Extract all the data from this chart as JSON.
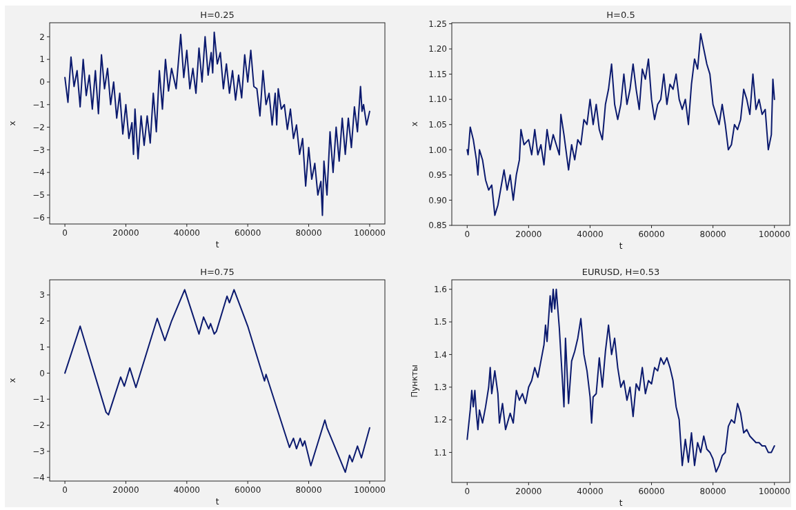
{
  "chart_data": [
    {
      "type": "line",
      "title": "H=0.25",
      "xlabel": "t",
      "ylabel": "x",
      "xlim": [
        -5000,
        105000
      ],
      "xticks": [
        0,
        20000,
        40000,
        60000,
        80000,
        100000
      ],
      "ylim": [
        -6.28,
        2.62
      ],
      "yticks": [
        {
          "value": -6,
          "label": "−6"
        },
        {
          "value": -5,
          "label": "−5"
        },
        {
          "value": -4,
          "label": "−4"
        },
        {
          "value": -3,
          "label": "−3"
        },
        {
          "value": -2,
          "label": "−2"
        },
        {
          "value": -1,
          "label": "−1"
        },
        0,
        1,
        2
      ],
      "grid": false,
      "series": [
        {
          "color": "#0b1a6e",
          "x": [
            0,
            1000,
            2000,
            3000,
            4000,
            5000,
            6000,
            7000,
            8000,
            9000,
            10000,
            11000,
            12000,
            13000,
            14000,
            15000,
            16000,
            17000,
            18000,
            19000,
            20000,
            21000,
            22000,
            22500,
            23000,
            24000,
            25000,
            26000,
            27000,
            28000,
            29000,
            30000,
            31000,
            32000,
            33000,
            34000,
            35000,
            36500,
            38000,
            39000,
            40000,
            41000,
            42000,
            43000,
            44000,
            45000,
            46000,
            47000,
            48000,
            48500,
            49000,
            50000,
            51000,
            52000,
            53000,
            54000,
            55000,
            56000,
            57000,
            58000,
            59000,
            60000,
            61000,
            62000,
            63000,
            64000,
            65000,
            66000,
            67000,
            68000,
            69000,
            69500,
            70000,
            71000,
            72000,
            73000,
            74000,
            75000,
            76000,
            77000,
            78000,
            79000,
            80000,
            81000,
            82000,
            83000,
            84000,
            84500,
            85000,
            86000,
            87000,
            88000,
            89000,
            90000,
            91000,
            92000,
            93000,
            94000,
            95000,
            96000,
            97000,
            97500,
            98000,
            99000,
            100000
          ],
          "values": [
            0.2,
            -0.9,
            1.1,
            -0.2,
            0.5,
            -1.1,
            1.0,
            -0.6,
            0.3,
            -1.2,
            0.5,
            -1.4,
            1.2,
            -0.3,
            0.6,
            -1.0,
            0.0,
            -1.6,
            -0.5,
            -2.3,
            -1.0,
            -2.5,
            -1.8,
            -3.2,
            -1.2,
            -3.4,
            -1.5,
            -2.8,
            -1.5,
            -2.7,
            -0.5,
            -2.2,
            0.5,
            -1.2,
            1.0,
            -0.4,
            0.6,
            -0.3,
            2.1,
            0.2,
            1.4,
            -0.3,
            0.6,
            -0.5,
            1.5,
            0.0,
            2.0,
            0.3,
            1.3,
            0.4,
            2.2,
            0.8,
            1.3,
            -0.3,
            0.8,
            -0.5,
            0.5,
            -0.8,
            0.3,
            -0.7,
            1.2,
            0.0,
            1.4,
            -0.2,
            -0.3,
            -1.5,
            0.5,
            -1.0,
            -0.5,
            -1.9,
            -0.5,
            -1.9,
            -0.3,
            -1.2,
            -1.0,
            -2.1,
            -1.2,
            -2.5,
            -1.9,
            -3.2,
            -2.5,
            -4.6,
            -2.9,
            -4.3,
            -3.6,
            -5.0,
            -4.4,
            -5.9,
            -3.5,
            -5.0,
            -2.2,
            -4.0,
            -2.0,
            -3.5,
            -1.6,
            -3.2,
            -1.6,
            -2.9,
            -1.1,
            -2.2,
            -0.2,
            -1.3,
            -1.0,
            -1.9,
            -1.3
          ]
        }
      ]
    },
    {
      "type": "line",
      "title": "H=0.5",
      "xlabel": "t",
      "ylabel": "x",
      "xlim": [
        -5000,
        105000
      ],
      "xticks": [
        0,
        20000,
        40000,
        60000,
        80000,
        100000
      ],
      "ylim": [
        0.85,
        1.252
      ],
      "yticks": [
        {
          "value": 0.85,
          "label": "0.85"
        },
        {
          "value": 0.9,
          "label": "0.90"
        },
        {
          "value": 0.95,
          "label": "0.95"
        },
        {
          "value": 1.0,
          "label": "1.00"
        },
        {
          "value": 1.05,
          "label": "1.05"
        },
        {
          "value": 1.1,
          "label": "1.10"
        },
        {
          "value": 1.15,
          "label": "1.15"
        },
        {
          "value": 1.2,
          "label": "1.20"
        },
        {
          "value": 1.25,
          "label": "1.25"
        }
      ],
      "grid": false,
      "series": [
        {
          "color": "#0b1a6e",
          "x": [
            0,
            300,
            1000,
            2000,
            3000,
            3500,
            4000,
            5000,
            6000,
            7000,
            8000,
            9000,
            10000,
            12000,
            13000,
            14000,
            15000,
            16000,
            17000,
            17500,
            18500,
            20000,
            21000,
            22000,
            23000,
            24000,
            25000,
            26000,
            27000,
            28000,
            29000,
            30000,
            30500,
            31500,
            33000,
            34000,
            35000,
            36000,
            37000,
            38000,
            39000,
            40000,
            41000,
            42000,
            43000,
            44000,
            45000,
            46000,
            47000,
            48000,
            49000,
            50000,
            51000,
            52000,
            53000,
            54000,
            55000,
            56000,
            57000,
            58000,
            59000,
            60000,
            61000,
            62000,
            63000,
            64000,
            65000,
            66000,
            67000,
            68000,
            69000,
            70000,
            71000,
            72000,
            73000,
            74000,
            75000,
            76000,
            77000,
            78000,
            79000,
            80000,
            81000,
            82000,
            83000,
            84000,
            85000,
            86000,
            87000,
            88000,
            89000,
            90000,
            91000,
            92000,
            93000,
            94000,
            95000,
            96000,
            97000,
            98000,
            99000,
            99500,
            100000
          ],
          "values": [
            1.0,
            0.99,
            1.045,
            1.02,
            0.98,
            0.95,
            1.0,
            0.98,
            0.94,
            0.92,
            0.93,
            0.87,
            0.89,
            0.96,
            0.92,
            0.95,
            0.9,
            0.95,
            0.98,
            1.04,
            1.01,
            1.02,
            0.99,
            1.04,
            0.99,
            1.01,
            0.97,
            1.04,
            1.0,
            1.03,
            1.01,
            0.99,
            1.07,
            1.03,
            0.96,
            1.01,
            0.98,
            1.02,
            1.01,
            1.06,
            1.05,
            1.1,
            1.05,
            1.09,
            1.04,
            1.02,
            1.09,
            1.12,
            1.17,
            1.09,
            1.06,
            1.09,
            1.15,
            1.09,
            1.12,
            1.17,
            1.12,
            1.08,
            1.16,
            1.14,
            1.18,
            1.1,
            1.06,
            1.09,
            1.1,
            1.15,
            1.09,
            1.13,
            1.12,
            1.15,
            1.1,
            1.08,
            1.1,
            1.05,
            1.13,
            1.18,
            1.16,
            1.23,
            1.2,
            1.17,
            1.15,
            1.09,
            1.07,
            1.05,
            1.09,
            1.05,
            1.0,
            1.01,
            1.05,
            1.04,
            1.06,
            1.12,
            1.1,
            1.07,
            1.15,
            1.08,
            1.1,
            1.07,
            1.08,
            1.0,
            1.03,
            1.14,
            1.1
          ]
        }
      ]
    },
    {
      "type": "line",
      "title": "H=0.75",
      "xlabel": "t",
      "ylabel": "x",
      "xlim": [
        -5000,
        105000
      ],
      "xticks": [
        0,
        20000,
        40000,
        60000,
        80000,
        100000
      ],
      "ylim": [
        -4.14,
        3.58
      ],
      "yticks": [
        {
          "value": -4,
          "label": "−4"
        },
        {
          "value": -3,
          "label": "−3"
        },
        {
          "value": -2,
          "label": "−2"
        },
        {
          "value": -1,
          "label": "−1"
        },
        0,
        1,
        2,
        3
      ],
      "grid": false,
      "series": [
        {
          "color": "#0b1a6e",
          "x": [
            0,
            5000,
            13500,
            14300,
            18300,
            19500,
            21300,
            23300,
            30300,
            32800,
            35000,
            37500,
            39300,
            44000,
            45500,
            47200,
            47800,
            49000,
            49700,
            53200,
            54000,
            55500,
            60000,
            65500,
            66000,
            73700,
            75000,
            76000,
            77200,
            78000,
            78700,
            80700,
            85300,
            86000,
            89000,
            92000,
            93400,
            94300,
            96000,
            97300,
            100000
          ],
          "values": [
            0,
            1.8,
            -1.5,
            -1.6,
            -0.15,
            -0.5,
            0.2,
            -0.55,
            2.1,
            1.25,
            2.0,
            2.7,
            3.2,
            1.5,
            2.15,
            1.7,
            1.9,
            1.5,
            1.6,
            2.95,
            2.7,
            3.2,
            1.8,
            -0.3,
            -0.05,
            -2.85,
            -2.5,
            -2.9,
            -2.5,
            -2.8,
            -2.6,
            -3.55,
            -1.8,
            -2.1,
            -2.95,
            -3.8,
            -3.15,
            -3.4,
            -2.8,
            -3.25,
            -2.1
          ]
        }
      ]
    },
    {
      "type": "line",
      "title": "EURUSD, H=0.53",
      "xlabel": "t",
      "ylabel": "Пункты",
      "xlim": [
        -5000,
        105000
      ],
      "xticks": [
        0,
        20000,
        40000,
        60000,
        80000,
        100000
      ],
      "ylim": [
        1.008,
        1.629
      ],
      "yticks": [
        1.1,
        1.2,
        1.3,
        1.4,
        1.5,
        1.6
      ],
      "grid": false,
      "series": [
        {
          "color": "#0b1a6e",
          "x": [
            0,
            1000,
            1500,
            2000,
            2500,
            3000,
            3500,
            4000,
            5000,
            6000,
            7000,
            7500,
            8000,
            9000,
            10000,
            10500,
            11500,
            12500,
            14000,
            15000,
            16000,
            17000,
            18000,
            19000,
            20000,
            21000,
            22000,
            23000,
            24000,
            25000,
            25500,
            26000,
            27000,
            27500,
            28000,
            28500,
            29000,
            30000,
            31000,
            31500,
            32000,
            33000,
            34000,
            35000,
            36000,
            37000,
            38000,
            39000,
            40000,
            40500,
            41000,
            42000,
            43000,
            44000,
            45000,
            46000,
            47000,
            48000,
            49000,
            50000,
            51000,
            52000,
            53000,
            54000,
            55000,
            56000,
            57000,
            58000,
            59000,
            60000,
            61000,
            62000,
            63000,
            64000,
            65000,
            66000,
            67000,
            68000,
            69000,
            70000,
            71000,
            72000,
            73000,
            74000,
            75000,
            76000,
            77000,
            78000,
            79000,
            80000,
            81000,
            82000,
            83000,
            84000,
            85000,
            86000,
            87000,
            88000,
            89000,
            90000,
            91000,
            92000,
            93000,
            94000,
            95000,
            96000,
            97000,
            98000,
            99000,
            100000
          ],
          "values": [
            1.14,
            1.23,
            1.29,
            1.24,
            1.29,
            1.22,
            1.17,
            1.23,
            1.19,
            1.24,
            1.3,
            1.36,
            1.28,
            1.35,
            1.28,
            1.19,
            1.25,
            1.17,
            1.22,
            1.19,
            1.29,
            1.26,
            1.28,
            1.25,
            1.3,
            1.32,
            1.36,
            1.33,
            1.38,
            1.43,
            1.49,
            1.44,
            1.58,
            1.53,
            1.6,
            1.54,
            1.6,
            1.48,
            1.32,
            1.24,
            1.45,
            1.25,
            1.38,
            1.41,
            1.45,
            1.51,
            1.4,
            1.35,
            1.27,
            1.19,
            1.27,
            1.28,
            1.39,
            1.3,
            1.41,
            1.49,
            1.4,
            1.45,
            1.36,
            1.3,
            1.32,
            1.26,
            1.3,
            1.21,
            1.31,
            1.29,
            1.36,
            1.28,
            1.32,
            1.31,
            1.36,
            1.35,
            1.39,
            1.37,
            1.39,
            1.36,
            1.32,
            1.24,
            1.2,
            1.06,
            1.14,
            1.07,
            1.16,
            1.06,
            1.13,
            1.1,
            1.15,
            1.11,
            1.1,
            1.08,
            1.04,
            1.06,
            1.09,
            1.1,
            1.18,
            1.2,
            1.19,
            1.25,
            1.22,
            1.16,
            1.17,
            1.15,
            1.14,
            1.13,
            1.13,
            1.12,
            1.12,
            1.1,
            1.1,
            1.12
          ]
        }
      ]
    }
  ]
}
